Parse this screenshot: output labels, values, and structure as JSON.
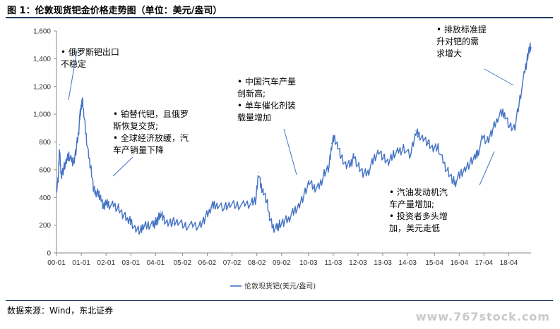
{
  "header": {
    "title": "图 1：伦敦现货钯金价格走势图（单位：美元/盎司）"
  },
  "footer": {
    "source": "数据来源：Wind，东北证券",
    "watermark": "www.767stock.com"
  },
  "chart_data": {
    "type": "line",
    "title": "",
    "xlabel": "",
    "ylabel": "",
    "ylim": [
      0,
      1600
    ],
    "yticks": [
      "0",
      "200",
      "400",
      "600",
      "800",
      "1,000",
      "1,200",
      "1,400",
      "1,600"
    ],
    "xticks": [
      "00-01",
      "01-01",
      "02-01",
      "03-01",
      "04-01",
      "05-02",
      "06-02",
      "07-02",
      "08-02",
      "09-02",
      "10-03",
      "11-03",
      "12-03",
      "13-03",
      "14-03",
      "15-04",
      "16-04",
      "17-04",
      "18-04"
    ],
    "xrange": [
      2000.0,
      2019.15
    ],
    "grid": false,
    "legend_position": "bottom",
    "series": [
      {
        "name": "伦敦现货钯(美元/盎司)",
        "color": "#4472c4",
        "x": [
          2000.0,
          2000.08,
          2000.12,
          2000.16,
          2000.2,
          2000.3,
          2000.4,
          2000.5,
          2000.6,
          2000.7,
          2000.8,
          2000.9,
          2000.95,
          2001.0,
          2001.05,
          2001.1,
          2001.2,
          2001.3,
          2001.4,
          2001.5,
          2001.6,
          2001.7,
          2001.8,
          2001.9,
          2002.0,
          2002.1,
          2002.3,
          2002.5,
          2002.7,
          2002.9,
          2003.0,
          2003.2,
          2003.4,
          2003.5,
          2003.7,
          2003.9,
          2004.0,
          2004.1,
          2004.2,
          2004.3,
          2004.5,
          2004.7,
          2004.9,
          2005.2,
          2005.5,
          2005.8,
          2006.0,
          2006.2,
          2006.35,
          2006.5,
          2006.8,
          2007.0,
          2007.3,
          2007.6,
          2007.9,
          2008.05,
          2008.15,
          2008.25,
          2008.35,
          2008.5,
          2008.6,
          2008.75,
          2008.9,
          2009.0,
          2009.2,
          2009.4,
          2009.6,
          2009.8,
          2010.0,
          2010.2,
          2010.4,
          2010.6,
          2010.8,
          2011.0,
          2011.1,
          2011.2,
          2011.35,
          2011.5,
          2011.7,
          2011.9,
          2012.0,
          2012.2,
          2012.4,
          2012.6,
          2012.8,
          2013.0,
          2013.2,
          2013.4,
          2013.6,
          2013.8,
          2014.0,
          2014.3,
          2014.5,
          2014.6,
          2014.8,
          2015.0,
          2015.2,
          2015.4,
          2015.6,
          2015.8,
          2016.0,
          2016.1,
          2016.3,
          2016.5,
          2016.7,
          2016.9,
          2017.0,
          2017.2,
          2017.4,
          2017.6,
          2017.8,
          2018.0,
          2018.1,
          2018.3,
          2018.5,
          2018.7,
          2018.9,
          2019.0,
          2019.1,
          2019.15
        ],
        "values": [
          430,
          560,
          780,
          640,
          560,
          600,
          650,
          700,
          680,
          660,
          760,
          900,
          1000,
          1050,
          1090,
          1000,
          850,
          700,
          600,
          440,
          430,
          420,
          380,
          330,
          370,
          360,
          340,
          310,
          260,
          240,
          240,
          180,
          170,
          200,
          200,
          190,
          210,
          240,
          300,
          260,
          220,
          210,
          210,
          190,
          180,
          200,
          260,
          330,
          350,
          330,
          320,
          340,
          360,
          350,
          370,
          400,
          580,
          470,
          430,
          370,
          260,
          190,
          180,
          190,
          220,
          250,
          290,
          350,
          430,
          520,
          470,
          460,
          560,
          620,
          790,
          840,
          780,
          700,
          620,
          640,
          680,
          620,
          580,
          600,
          680,
          720,
          680,
          640,
          700,
          730,
          760,
          720,
          880,
          840,
          820,
          790,
          760,
          770,
          660,
          600,
          520,
          500,
          560,
          610,
          660,
          700,
          720,
          820,
          800,
          880,
          960,
          1020,
          1000,
          920,
          900,
          1100,
          1300,
          1400,
          1500,
          1480
        ]
      }
    ],
    "annotations": [
      {
        "lines": [
          "•  俄罗斯钯出口",
          "   不稳定"
        ]
      },
      {
        "lines": [
          "•  铂替代钯，且俄罗",
          "   斯恢复交货;",
          "•  全球经济放缓，汽",
          "   车产销量下降"
        ]
      },
      {
        "lines": [
          "•  中国汽车产量",
          "   创新高;",
          "•  单车催化剂装",
          "   载量增加"
        ]
      },
      {
        "lines": [
          "•  排放标准提",
          "   升对钯的需",
          "   求增大"
        ]
      },
      {
        "lines": [
          "•  汽油发动机汽",
          "   车产量增加;",
          "•  投资者多头增",
          "   加，美元走低"
        ]
      }
    ]
  }
}
